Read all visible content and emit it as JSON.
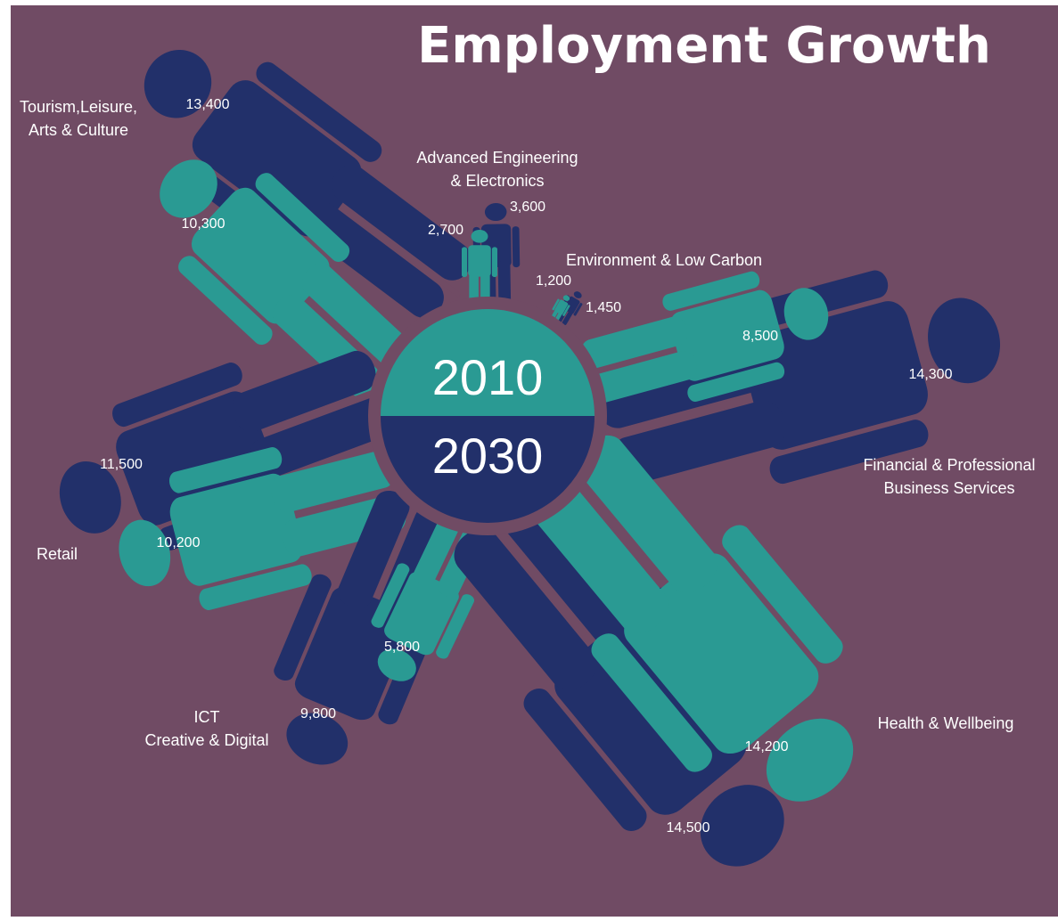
{
  "chart_data": {
    "type": "pictogram",
    "title": "Employment Growth",
    "series": [
      {
        "name": "2010",
        "color": "#2a9a93"
      },
      {
        "name": "2030",
        "color": "#22306a"
      }
    ],
    "categories": [
      "Tourism,Leisure, Arts & Culture",
      "Advanced Engineering & Electronics",
      "Environment & Low Carbon",
      "Financial & Professional Business Services",
      "Health & Wellbeing",
      "ICT Creative & Digital",
      "Retail"
    ],
    "sectors": [
      {
        "id": "tourism",
        "label_lines": [
          "Tourism,Leisure,",
          "Arts & Culture"
        ],
        "v2010": 10300,
        "v2030": 13400,
        "v2010_label": "10,300",
        "v2030_label": "13,400"
      },
      {
        "id": "engineering",
        "label_lines": [
          "Advanced Engineering",
          "& Electronics"
        ],
        "v2010": 2700,
        "v2030": 3600,
        "v2010_label": "2,700",
        "v2030_label": "3,600"
      },
      {
        "id": "environment",
        "label_lines": [
          "Environment & Low Carbon"
        ],
        "v2010": 1200,
        "v2030": 1450,
        "v2010_label": "1,200",
        "v2030_label": "1,450"
      },
      {
        "id": "financial",
        "label_lines": [
          "Financial & Professional",
          "Business Services"
        ],
        "v2010": 8500,
        "v2030": 14300,
        "v2010_label": "8,500",
        "v2030_label": "14,300"
      },
      {
        "id": "health",
        "label_lines": [
          "Health & Wellbeing"
        ],
        "v2010": 14200,
        "v2030": 14500,
        "v2010_label": "14,200",
        "v2030_label": "14,500"
      },
      {
        "id": "ict",
        "label_lines": [
          "ICT",
          "Creative & Digital"
        ],
        "v2010": 5800,
        "v2030": 9800,
        "v2010_label": "5,800",
        "v2030_label": "9,800"
      },
      {
        "id": "retail",
        "label_lines": [
          "Retail"
        ],
        "v2010": 10200,
        "v2030": 11500,
        "v2010_label": "10,200",
        "v2030_label": "11,500"
      }
    ],
    "hub": {
      "top_label": "2010",
      "bottom_label": "2030"
    },
    "colors": {
      "background": "#704b64",
      "teal": "#2a9a93",
      "navy": "#22306a"
    }
  }
}
